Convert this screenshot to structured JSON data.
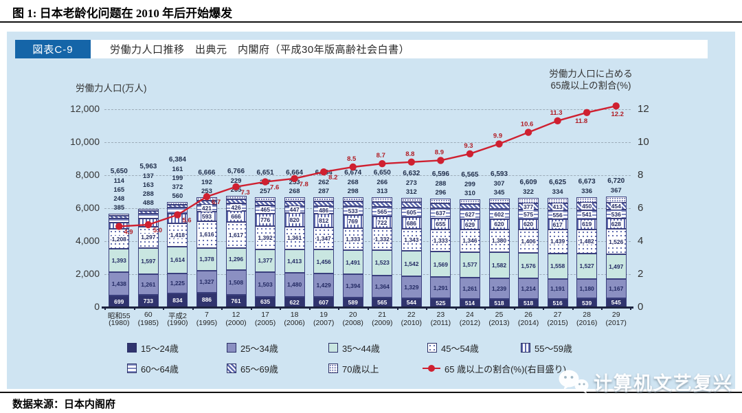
{
  "figure": {
    "title": "图 1: 日本老龄化问题在 2010 年后开始爆发"
  },
  "panel": {
    "badge": "図表C-9",
    "header": "労働力人口推移　出典元　内閣府（平成30年版高齢社会白書）",
    "left_axis_title": "労働力人口(万人)",
    "right_axis_title_line1": "労働力人口に占める",
    "right_axis_title_line2": "65歳以上の割合(%)"
  },
  "source": "数据来源：日本内阁府",
  "watermark": {
    "text": "计算机文艺复兴"
  },
  "colors": {
    "panel_bg": "#cfe4f2",
    "badge_bg": "#1565a8",
    "age_15_24": "#30346e",
    "age_25_34": "#8b90c2",
    "age_35_44": "#c9e6e1",
    "pattern_ink": "#5a66ab",
    "line_red": "#cf2030",
    "baseline": "#1d2340",
    "grid": "#9cabb8"
  },
  "chart_data": {
    "type": "bar",
    "subtype": "stacked-bars-with-line",
    "categories_era": [
      "昭和55",
      "60",
      "平成2",
      "7",
      "12",
      "17",
      "18",
      "19",
      "20",
      "21",
      "22",
      "23",
      "24",
      "25",
      "26",
      "27",
      "28",
      "29"
    ],
    "categories_year": [
      "(1980)",
      "(1985)",
      "(1990)",
      "(1995)",
      "(2000)",
      "(2005)",
      "(2006)",
      "(2007)",
      "(2008)",
      "(2009)",
      "(2010)",
      "(2011)",
      "(2012)",
      "(2013)",
      "(2014)",
      "(2015)",
      "(2016)",
      "(2017)"
    ],
    "series": [
      {
        "name": "15～24歳",
        "pattern": "p-navy",
        "values": [
          699,
          733,
          834,
          886,
          761,
          635,
          622,
          607,
          589,
          565,
          544,
          525,
          514,
          518,
          518,
          516,
          539,
          545
        ]
      },
      {
        "name": "25～34歳",
        "pattern": "p-slate",
        "values": [
          1438,
          1261,
          1225,
          1327,
          1508,
          1503,
          1480,
          1429,
          1394,
          1364,
          1329,
          1291,
          1261,
          1239,
          1214,
          1191,
          1180,
          1167
        ]
      },
      {
        "name": "35～44歳",
        "pattern": "p-teal",
        "values": [
          1393,
          1597,
          1614,
          1378,
          1296,
          1377,
          1413,
          1456,
          1491,
          1523,
          1542,
          1569,
          1577,
          1582,
          1576,
          1558,
          1527,
          1497
        ]
      },
      {
        "name": "45～54歳",
        "pattern": "p-dots",
        "values": [
          1208,
          1297,
          1418,
          1616,
          1617,
          1392,
          1361,
          1347,
          1333,
          1332,
          1343,
          1333,
          1346,
          1380,
          1406,
          1439,
          1482,
          1526
        ]
      },
      {
        "name": "55～59歳",
        "pattern": "p-vstripe",
        "values": [
          385,
          488,
          560,
          593,
          666,
          776,
          820,
          812,
          769,
          722,
          686,
          655,
          629,
          620,
          620,
          617,
          619,
          628
        ]
      },
      {
        "name": "60～64歳",
        "pattern": "p-hstripe",
        "values": [
          248,
          288,
          372,
          421,
          426,
          465,
          447,
          486,
          533,
          565,
          605,
          637,
          627,
          602,
          575,
          556,
          541,
          536
        ]
      },
      {
        "name": "65～69歳",
        "pattern": "p-diag",
        "values": [
          165,
          163,
          199,
          253,
          265,
          257,
          268,
          287,
          298,
          313,
          312,
          296,
          310,
          345,
          377,
          413,
          450,
          454
        ]
      },
      {
        "name": "70歳以上",
        "pattern": "p-densedots",
        "values": [
          114,
          137,
          161,
          192,
          229,
          247,
          253,
          262,
          268,
          266,
          273,
          288,
          299,
          307,
          322,
          334,
          336,
          367
        ]
      }
    ],
    "totals": [
      5650,
      5963,
      6384,
      6666,
      6766,
      6651,
      6664,
      6684,
      6674,
      6650,
      6632,
      6596,
      6565,
      6593,
      6609,
      6625,
      6673,
      6720
    ],
    "outside_label_counts": [
      4,
      4,
      4,
      2,
      2,
      2,
      2,
      2,
      2,
      2,
      2,
      2,
      2,
      2,
      1,
      1,
      1,
      1
    ],
    "line": {
      "name": "65 歳以上の割合(%)(右目盛り)",
      "values": [
        4.9,
        5.0,
        5.6,
        6.7,
        7.3,
        7.6,
        7.8,
        8.2,
        8.5,
        8.7,
        8.8,
        8.9,
        9.3,
        9.9,
        10.6,
        11.3,
        11.8,
        12.2
      ],
      "label_positions": [
        "br",
        "br",
        "br",
        "br",
        "br",
        "br",
        "br",
        "br",
        "a",
        "a",
        "a",
        "a",
        "a",
        "a",
        "a",
        "a",
        "bl",
        "b"
      ]
    },
    "ylim_left": [
      0,
      12000
    ],
    "ylim_right": [
      0,
      12
    ],
    "yticks_left": [
      "12,000",
      "10,000",
      "8,000",
      "6,000",
      "4,000",
      "2,000",
      "0"
    ],
    "yticks_right": [
      "12",
      "10",
      "8",
      "6",
      "4",
      "2",
      "0"
    ],
    "grid": "dashed-horizontal",
    "legend_position": "bottom",
    "legend_rows": [
      [
        0,
        1,
        2,
        3,
        4
      ],
      [
        5,
        6,
        7,
        8
      ]
    ]
  }
}
